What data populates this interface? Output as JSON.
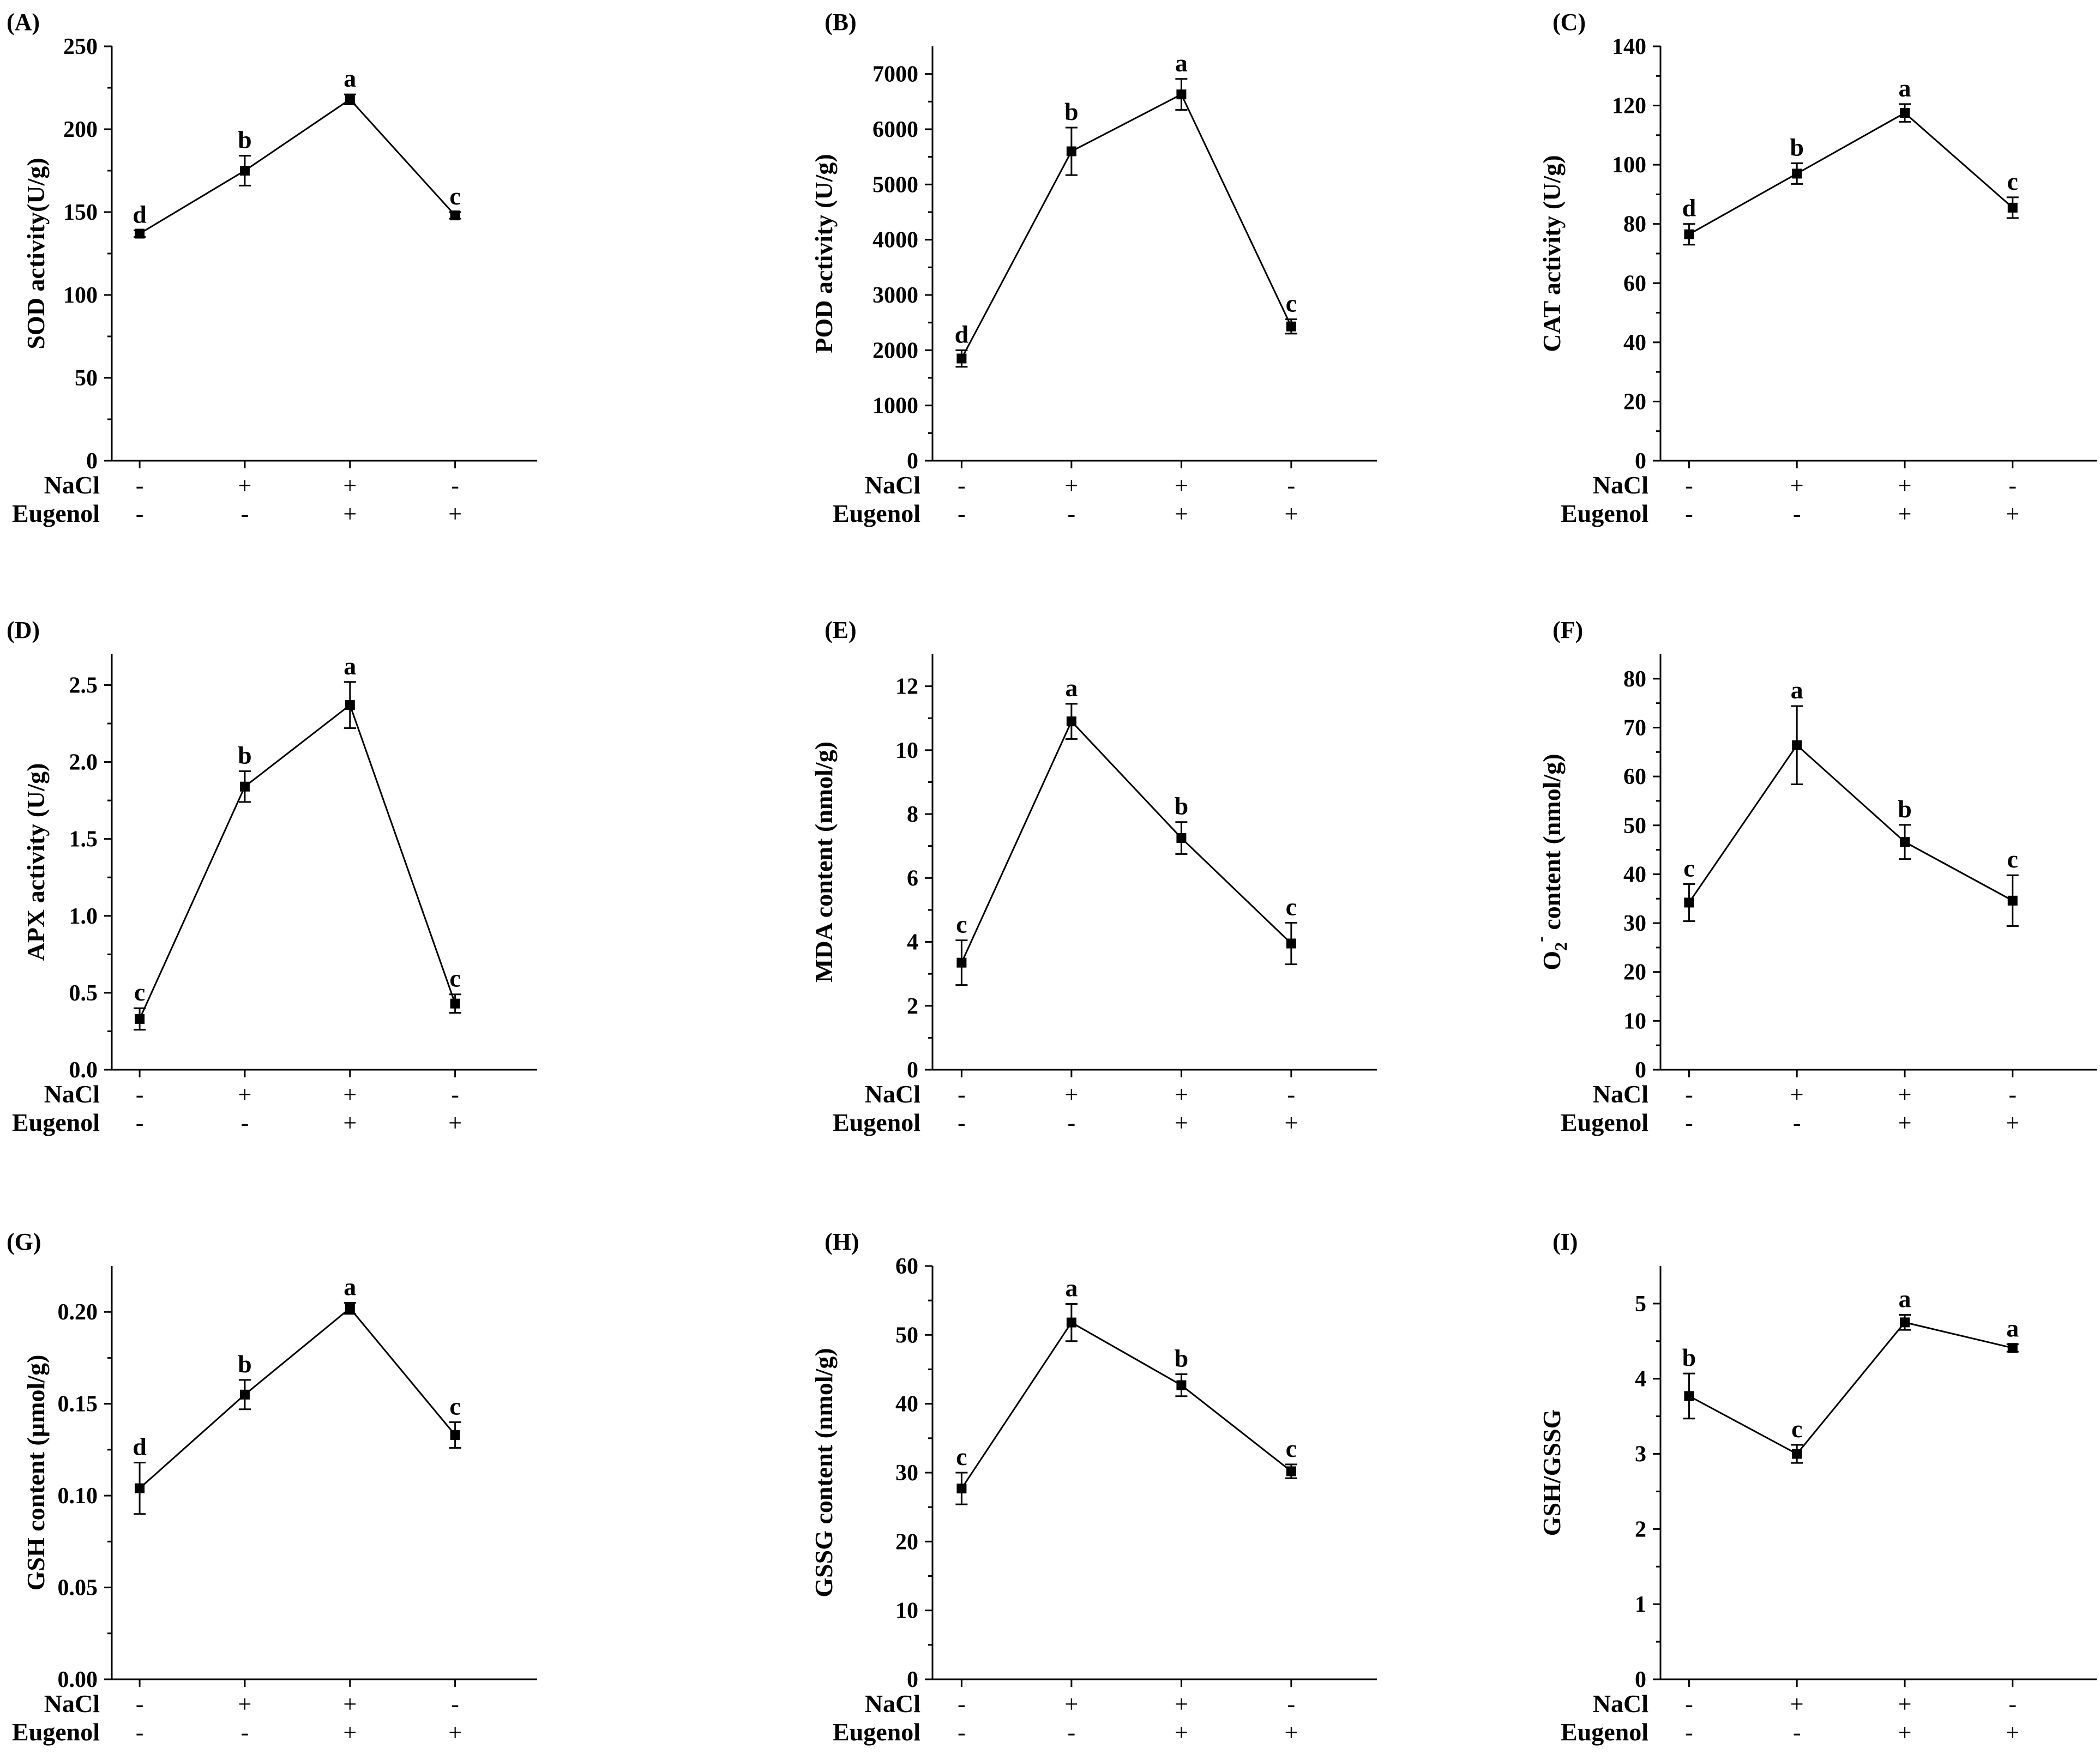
{
  "treatment_rows": [
    {
      "name": "NaCl",
      "signs": [
        "-",
        "+",
        "+",
        "-"
      ]
    },
    {
      "name": "Eugenol",
      "signs": [
        "-",
        "-",
        "+",
        "+"
      ]
    }
  ],
  "chart_data": [
    {
      "type": "line",
      "panel": "(A)",
      "ylabel": "SOD activity(U/g)",
      "ylabel_parts": [
        {
          "text": "SOD activity(U/g)"
        }
      ],
      "ylim": [
        0,
        250
      ],
      "yticks": [
        0,
        50,
        100,
        150,
        200,
        250
      ],
      "tick_labels": [
        "0",
        "50",
        "100",
        "150",
        "200",
        "250"
      ],
      "values": [
        137,
        175,
        218,
        148
      ],
      "errors": [
        2,
        9,
        3,
        2
      ],
      "letters": [
        "d",
        "b",
        "a",
        "c"
      ]
    },
    {
      "type": "line",
      "panel": "(B)",
      "ylabel": "POD activity (U/g)",
      "ylabel_parts": [
        {
          "text": "POD activity (U/g)"
        }
      ],
      "ylim": [
        0,
        7500
      ],
      "yticks": [
        0,
        1000,
        2000,
        3000,
        4000,
        5000,
        6000,
        7000
      ],
      "tick_labels": [
        "0",
        "1000",
        "2000",
        "3000",
        "4000",
        "5000",
        "6000",
        "7000"
      ],
      "values": [
        1850,
        5600,
        6630,
        2430
      ],
      "errors": [
        150,
        430,
        280,
        130
      ],
      "letters": [
        "d",
        "b",
        "a",
        "c"
      ]
    },
    {
      "type": "line",
      "panel": "(C)",
      "ylabel": "CAT activity (U/g)",
      "ylabel_parts": [
        {
          "text": "CAT activity (U/g)"
        }
      ],
      "ylim": [
        0,
        140
      ],
      "yticks": [
        0,
        20,
        40,
        60,
        80,
        100,
        120,
        140
      ],
      "tick_labels": [
        "0",
        "20",
        "40",
        "60",
        "80",
        "100",
        "120",
        "140"
      ],
      "values": [
        76.5,
        97,
        117.5,
        85.5
      ],
      "errors": [
        3.5,
        3.5,
        3,
        3.5
      ],
      "letters": [
        "d",
        "b",
        "a",
        "c"
      ]
    },
    {
      "type": "line",
      "panel": "(D)",
      "ylabel": "APX activity (U/g)",
      "ylabel_parts": [
        {
          "text": "APX activity (U/g)"
        }
      ],
      "ylim": [
        0,
        2.7
      ],
      "yticks": [
        0,
        0.5,
        1.0,
        1.5,
        2.0,
        2.5
      ],
      "tick_labels": [
        "0.0",
        "0.5",
        "1.0",
        "1.5",
        "2.0",
        "2.5"
      ],
      "values": [
        0.33,
        1.84,
        2.37,
        0.43
      ],
      "errors": [
        0.07,
        0.1,
        0.15,
        0.06
      ],
      "letters": [
        "c",
        "b",
        "a",
        "c"
      ]
    },
    {
      "type": "line",
      "panel": "(E)",
      "ylabel": "MDA content (nmol/g)",
      "ylabel_parts": [
        {
          "text": "MDA content (nmol/g)"
        }
      ],
      "ylim": [
        0,
        13
      ],
      "yticks": [
        0,
        2,
        4,
        6,
        8,
        10,
        12
      ],
      "tick_labels": [
        "0",
        "2",
        "4",
        "6",
        "8",
        "10",
        "12"
      ],
      "values": [
        3.35,
        10.9,
        7.25,
        3.95
      ],
      "errors": [
        0.7,
        0.55,
        0.5,
        0.65
      ],
      "letters": [
        "c",
        "a",
        "b",
        "c"
      ]
    },
    {
      "type": "line",
      "panel": "(F)",
      "ylabel": "O2- content (nmol/g)",
      "ylabel_parts": [
        {
          "text": "O"
        },
        {
          "text": "2",
          "sub": true
        },
        {
          "text": "-",
          "sup": true
        },
        {
          "text": " content (nmol/g)"
        }
      ],
      "ylim": [
        0,
        85
      ],
      "yticks": [
        0,
        10,
        20,
        30,
        40,
        50,
        60,
        70,
        80
      ],
      "tick_labels": [
        "0",
        "10",
        "20",
        "30",
        "40",
        "50",
        "60",
        "70",
        "80"
      ],
      "values": [
        34.2,
        66.4,
        46.6,
        34.6
      ],
      "errors": [
        3.8,
        8,
        3.5,
        5.2
      ],
      "letters": [
        "c",
        "a",
        "b",
        "c"
      ]
    },
    {
      "type": "line",
      "panel": "(G)",
      "ylabel": "GSH content (µmol/g)",
      "ylabel_parts": [
        {
          "text": "GSH content (µmol/g)"
        }
      ],
      "ylim": [
        0,
        0.225
      ],
      "yticks": [
        0,
        0.05,
        0.1,
        0.15,
        0.2
      ],
      "tick_labels": [
        "0.00",
        "0.05",
        "0.10",
        "0.15",
        "0.20"
      ],
      "values": [
        0.104,
        0.155,
        0.202,
        0.133
      ],
      "errors": [
        0.014,
        0.008,
        0.003,
        0.007
      ],
      "letters": [
        "d",
        "b",
        "a",
        "c"
      ]
    },
    {
      "type": "line",
      "panel": "(H)",
      "ylabel": "GSSG content (nmol/g)",
      "ylabel_parts": [
        {
          "text": "GSSG content (nmol/g)"
        }
      ],
      "ylim": [
        0,
        60
      ],
      "yticks": [
        0,
        10,
        20,
        30,
        40,
        50,
        60
      ],
      "tick_labels": [
        "0",
        "10",
        "20",
        "30",
        "40",
        "50",
        "60"
      ],
      "values": [
        27.7,
        51.8,
        42.7,
        30.2
      ],
      "errors": [
        2.3,
        2.7,
        1.6,
        1
      ],
      "letters": [
        "c",
        "a",
        "b",
        "c"
      ]
    },
    {
      "type": "line",
      "panel": "(I)",
      "ylabel": "GSH/GSSG",
      "ylabel_parts": [
        {
          "text": "GSH/GSSG"
        }
      ],
      "ylim": [
        0,
        5.5
      ],
      "yticks": [
        0,
        1,
        2,
        3,
        4,
        5
      ],
      "tick_labels": [
        "0",
        "1",
        "2",
        "3",
        "4",
        "5"
      ],
      "values": [
        3.77,
        3.0,
        4.75,
        4.41
      ],
      "errors": [
        0.3,
        0.12,
        0.1,
        0.05
      ],
      "letters": [
        "b",
        "c",
        "a",
        "a"
      ]
    }
  ]
}
